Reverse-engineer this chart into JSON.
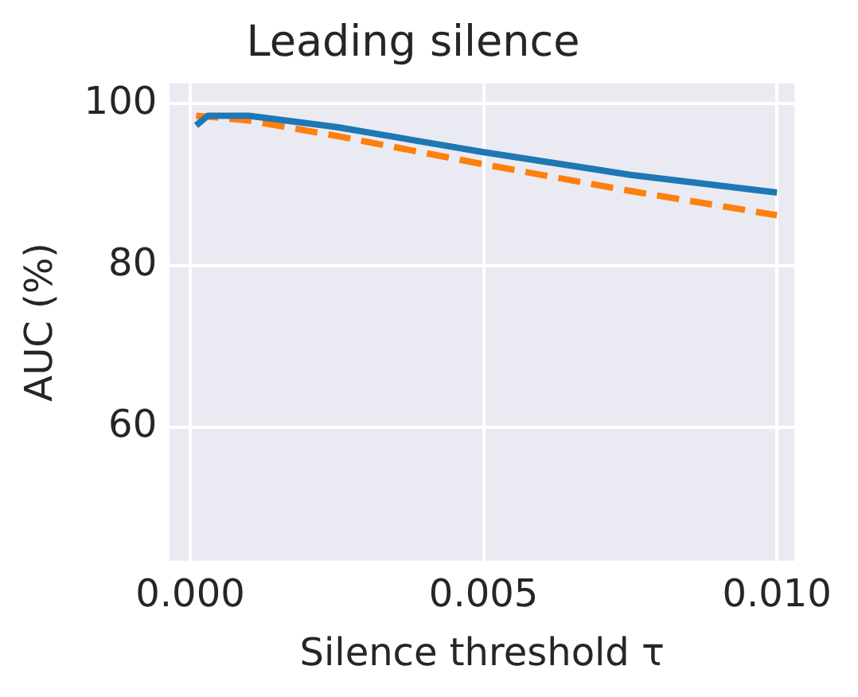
{
  "chart_data": {
    "type": "line",
    "title": "Leading silence",
    "xlabel": "Silence threshold τ",
    "ylabel": "AUC (%)",
    "series": [
      {
        "color": "#1f77b4",
        "line_style": "solid",
        "x": [
          0.0001,
          0.0003,
          0.001,
          0.0025,
          0.005,
          0.0075,
          0.01
        ],
        "values": [
          97.3,
          98.5,
          98.5,
          97.1,
          94.0,
          91.2,
          89.0
        ]
      },
      {
        "color": "#ff7f0e",
        "line_style": "dashed",
        "x": [
          0.0001,
          0.0003,
          0.001,
          0.0025,
          0.005,
          0.0075,
          0.01
        ],
        "values": [
          98.5,
          98.4,
          97.9,
          96.0,
          92.5,
          89.2,
          86.2
        ]
      }
    ],
    "xlim": [
      -0.00035,
      0.0103
    ],
    "ylim": [
      43.5,
      102.5
    ],
    "xticks": [
      {
        "value": 0,
        "label": "0.000"
      },
      {
        "value": 0.005,
        "label": "0.005"
      },
      {
        "value": 0.01,
        "label": "0.010"
      }
    ],
    "yticks": [
      60,
      80,
      100
    ],
    "grid": true,
    "legend": false,
    "marker": "none"
  }
}
